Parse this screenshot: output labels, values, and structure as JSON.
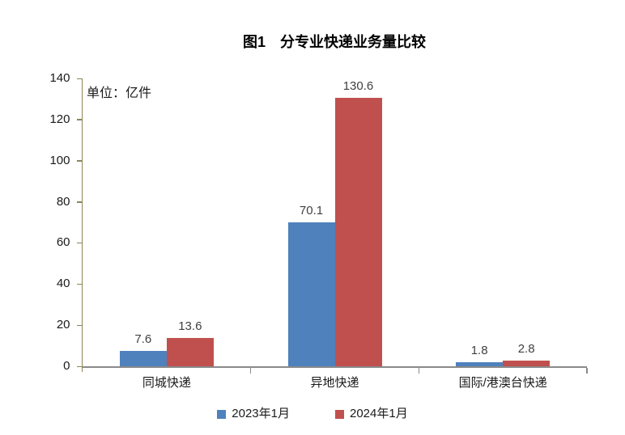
{
  "title": "图1　分专业快递业务量比较",
  "unit_label": "单位：亿件",
  "colors": {
    "series_2023": "#4F81BD",
    "series_2024": "#C0504D",
    "vertical_axis": "#8e8555",
    "horizontal_axis": "#8a8a8a",
    "value_label": "#404040",
    "text": "#1a1a1a"
  },
  "chart_data": {
    "type": "bar",
    "title": "图1　分专业快递业务量比较",
    "ylabel": "单位：亿件",
    "categories": [
      "同城快递",
      "异地快递",
      "国际/港澳台快递"
    ],
    "series": [
      {
        "name": "2023年1月",
        "color": "#4F81BD",
        "values": [
          7.6,
          70.1,
          1.8
        ]
      },
      {
        "name": "2024年1月",
        "color": "#C0504D",
        "values": [
          13.6,
          130.6,
          2.8
        ]
      }
    ],
    "ylim": [
      0,
      140
    ],
    "yticks": [
      0,
      20,
      40,
      60,
      80,
      100,
      120,
      140
    ],
    "grid": false,
    "data_labels": true,
    "legend_position": "bottom"
  }
}
